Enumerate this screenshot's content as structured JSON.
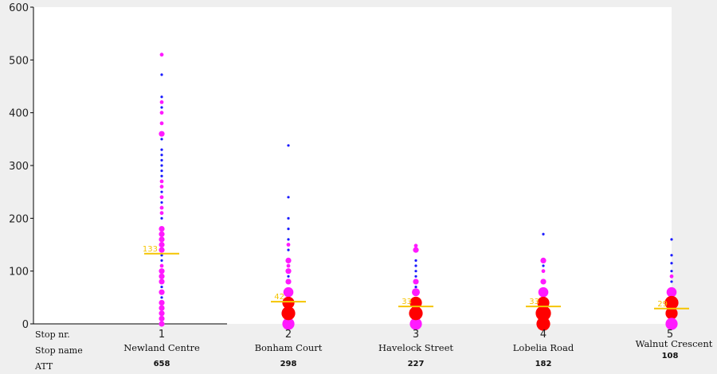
{
  "chart_data": {
    "type": "scatter",
    "ylim": [
      0,
      600
    ],
    "yticks": [
      0,
      100,
      200,
      300,
      400,
      500,
      600
    ],
    "row_labels": {
      "stop_nr": "Stop nr.",
      "stop_name": "Stop name",
      "att": "ATT"
    },
    "colors": {
      "plot_bg": "#ffffff",
      "page_bg": "#efefef",
      "average": "#f5c400",
      "sparse": "#1a1aff",
      "medium": "#ff1aff",
      "dense": "#ff0000"
    },
    "stops": [
      {
        "nr": "1",
        "name": "Newland Centre",
        "att": "658",
        "average": 133,
        "average_label": "133",
        "points": [
          {
            "y": 510,
            "c": "medium",
            "s": 2
          },
          {
            "y": 472,
            "c": "sparse",
            "s": 1
          },
          {
            "y": 430,
            "c": "sparse",
            "s": 1
          },
          {
            "y": 420,
            "c": "medium",
            "s": 2
          },
          {
            "y": 410,
            "c": "sparse",
            "s": 1
          },
          {
            "y": 400,
            "c": "medium",
            "s": 2
          },
          {
            "y": 380,
            "c": "medium",
            "s": 2
          },
          {
            "y": 360,
            "c": "medium",
            "s": 3
          },
          {
            "y": 350,
            "c": "sparse",
            "s": 1
          },
          {
            "y": 330,
            "c": "sparse",
            "s": 1
          },
          {
            "y": 320,
            "c": "sparse",
            "s": 1
          },
          {
            "y": 310,
            "c": "sparse",
            "s": 1
          },
          {
            "y": 300,
            "c": "sparse",
            "s": 1
          },
          {
            "y": 290,
            "c": "sparse",
            "s": 1
          },
          {
            "y": 280,
            "c": "sparse",
            "s": 1
          },
          {
            "y": 270,
            "c": "medium",
            "s": 2
          },
          {
            "y": 260,
            "c": "medium",
            "s": 2
          },
          {
            "y": 250,
            "c": "sparse",
            "s": 1
          },
          {
            "y": 240,
            "c": "medium",
            "s": 2
          },
          {
            "y": 230,
            "c": "sparse",
            "s": 1
          },
          {
            "y": 220,
            "c": "medium",
            "s": 2
          },
          {
            "y": 210,
            "c": "medium",
            "s": 2
          },
          {
            "y": 200,
            "c": "sparse",
            "s": 1
          },
          {
            "y": 180,
            "c": "medium",
            "s": 3
          },
          {
            "y": 170,
            "c": "medium",
            "s": 3
          },
          {
            "y": 160,
            "c": "medium",
            "s": 3
          },
          {
            "y": 150,
            "c": "medium",
            "s": 3
          },
          {
            "y": 140,
            "c": "medium",
            "s": 3
          },
          {
            "y": 130,
            "c": "sparse",
            "s": 1
          },
          {
            "y": 120,
            "c": "sparse",
            "s": 1
          },
          {
            "y": 110,
            "c": "medium",
            "s": 2
          },
          {
            "y": 100,
            "c": "medium",
            "s": 3
          },
          {
            "y": 90,
            "c": "medium",
            "s": 3
          },
          {
            "y": 80,
            "c": "medium",
            "s": 3
          },
          {
            "y": 70,
            "c": "sparse",
            "s": 1
          },
          {
            "y": 60,
            "c": "medium",
            "s": 3
          },
          {
            "y": 50,
            "c": "sparse",
            "s": 1
          },
          {
            "y": 40,
            "c": "medium",
            "s": 3
          },
          {
            "y": 30,
            "c": "medium",
            "s": 3
          },
          {
            "y": 20,
            "c": "medium",
            "s": 3
          },
          {
            "y": 10,
            "c": "medium",
            "s": 3
          },
          {
            "y": 0,
            "c": "medium",
            "s": 3
          }
        ]
      },
      {
        "nr": "2",
        "name": "Bonham Court",
        "att": "298",
        "average": 42,
        "average_label": "42",
        "points": [
          {
            "y": 338,
            "c": "sparse",
            "s": 1
          },
          {
            "y": 240,
            "c": "sparse",
            "s": 1
          },
          {
            "y": 200,
            "c": "sparse",
            "s": 1
          },
          {
            "y": 180,
            "c": "sparse",
            "s": 1
          },
          {
            "y": 160,
            "c": "sparse",
            "s": 1
          },
          {
            "y": 150,
            "c": "medium",
            "s": 2
          },
          {
            "y": 140,
            "c": "sparse",
            "s": 1
          },
          {
            "y": 120,
            "c": "medium",
            "s": 3
          },
          {
            "y": 110,
            "c": "medium",
            "s": 2
          },
          {
            "y": 100,
            "c": "medium",
            "s": 3
          },
          {
            "y": 90,
            "c": "sparse",
            "s": 1
          },
          {
            "y": 80,
            "c": "medium",
            "s": 3
          },
          {
            "y": 60,
            "c": "medium",
            "s": 5
          },
          {
            "y": 40,
            "c": "dense",
            "s": 6
          },
          {
            "y": 20,
            "c": "dense",
            "s": 7
          },
          {
            "y": 0,
            "c": "medium",
            "s": 6
          }
        ]
      },
      {
        "nr": "3",
        "name": "Havelock Street",
        "att": "227",
        "average": 33,
        "average_label": "33",
        "points": [
          {
            "y": 148,
            "c": "medium",
            "s": 2
          },
          {
            "y": 140,
            "c": "medium",
            "s": 3
          },
          {
            "y": 120,
            "c": "sparse",
            "s": 1
          },
          {
            "y": 110,
            "c": "sparse",
            "s": 1
          },
          {
            "y": 100,
            "c": "sparse",
            "s": 1
          },
          {
            "y": 90,
            "c": "sparse",
            "s": 1
          },
          {
            "y": 80,
            "c": "medium",
            "s": 3
          },
          {
            "y": 70,
            "c": "sparse",
            "s": 1
          },
          {
            "y": 60,
            "c": "medium",
            "s": 4
          },
          {
            "y": 40,
            "c": "dense",
            "s": 6
          },
          {
            "y": 20,
            "c": "dense",
            "s": 7
          },
          {
            "y": 0,
            "c": "medium",
            "s": 6
          }
        ]
      },
      {
        "nr": "4",
        "name": "Lobelia Road",
        "att": "182",
        "average": 33,
        "average_label": "33",
        "points": [
          {
            "y": 170,
            "c": "sparse",
            "s": 1
          },
          {
            "y": 120,
            "c": "medium",
            "s": 3
          },
          {
            "y": 110,
            "c": "sparse",
            "s": 1
          },
          {
            "y": 100,
            "c": "medium",
            "s": 2
          },
          {
            "y": 80,
            "c": "medium",
            "s": 3
          },
          {
            "y": 60,
            "c": "medium",
            "s": 5
          },
          {
            "y": 40,
            "c": "dense",
            "s": 6
          },
          {
            "y": 20,
            "c": "dense",
            "s": 8
          },
          {
            "y": 0,
            "c": "dense",
            "s": 7
          }
        ]
      },
      {
        "nr": "5",
        "name": "Walnut Crescent",
        "att": "108",
        "average": 29,
        "average_label": "29",
        "points": [
          {
            "y": 160,
            "c": "sparse",
            "s": 1
          },
          {
            "y": 130,
            "c": "sparse",
            "s": 1
          },
          {
            "y": 115,
            "c": "sparse",
            "s": 1
          },
          {
            "y": 100,
            "c": "sparse",
            "s": 1
          },
          {
            "y": 90,
            "c": "medium",
            "s": 2
          },
          {
            "y": 80,
            "c": "sparse",
            "s": 1
          },
          {
            "y": 60,
            "c": "medium",
            "s": 5
          },
          {
            "y": 40,
            "c": "dense",
            "s": 7
          },
          {
            "y": 20,
            "c": "dense",
            "s": 6
          },
          {
            "y": 0,
            "c": "medium",
            "s": 6
          }
        ]
      }
    ]
  }
}
